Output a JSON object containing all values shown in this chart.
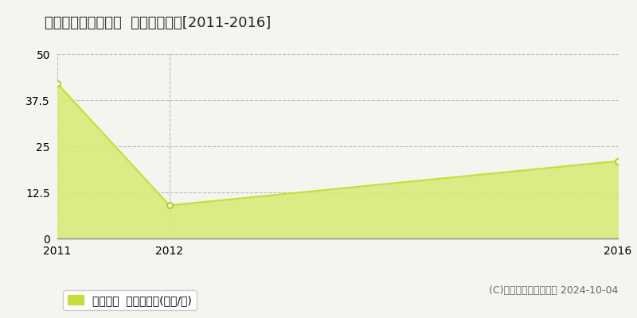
{
  "title": "静岡市駿河区西大谷  土地価格推移[2011-2016]",
  "years": [
    2011,
    2012,
    2016
  ],
  "values": [
    42,
    9,
    21
  ],
  "ylim": [
    0,
    50
  ],
  "yticks": [
    0,
    12.5,
    25,
    37.5,
    50
  ],
  "xticks": [
    2011,
    2012,
    2016
  ],
  "xlim": [
    2011,
    2016
  ],
  "line_color": "#c8dd3a",
  "fill_color": "#d6eb7a",
  "fill_alpha": 0.9,
  "marker_color": "#ffffff",
  "marker_edge_color": "#b8cc2a",
  "grid_color": "#bbbbbb",
  "bg_color": "#f5f5f0",
  "legend_label": "土地価格  平均坪単価(万円/坪)",
  "legend_color": "#c8dd3a",
  "copyright_text": "(C)土地価格ドットコム 2024-10-04",
  "title_fontsize": 13,
  "tick_fontsize": 10,
  "legend_fontsize": 10,
  "copyright_fontsize": 9
}
